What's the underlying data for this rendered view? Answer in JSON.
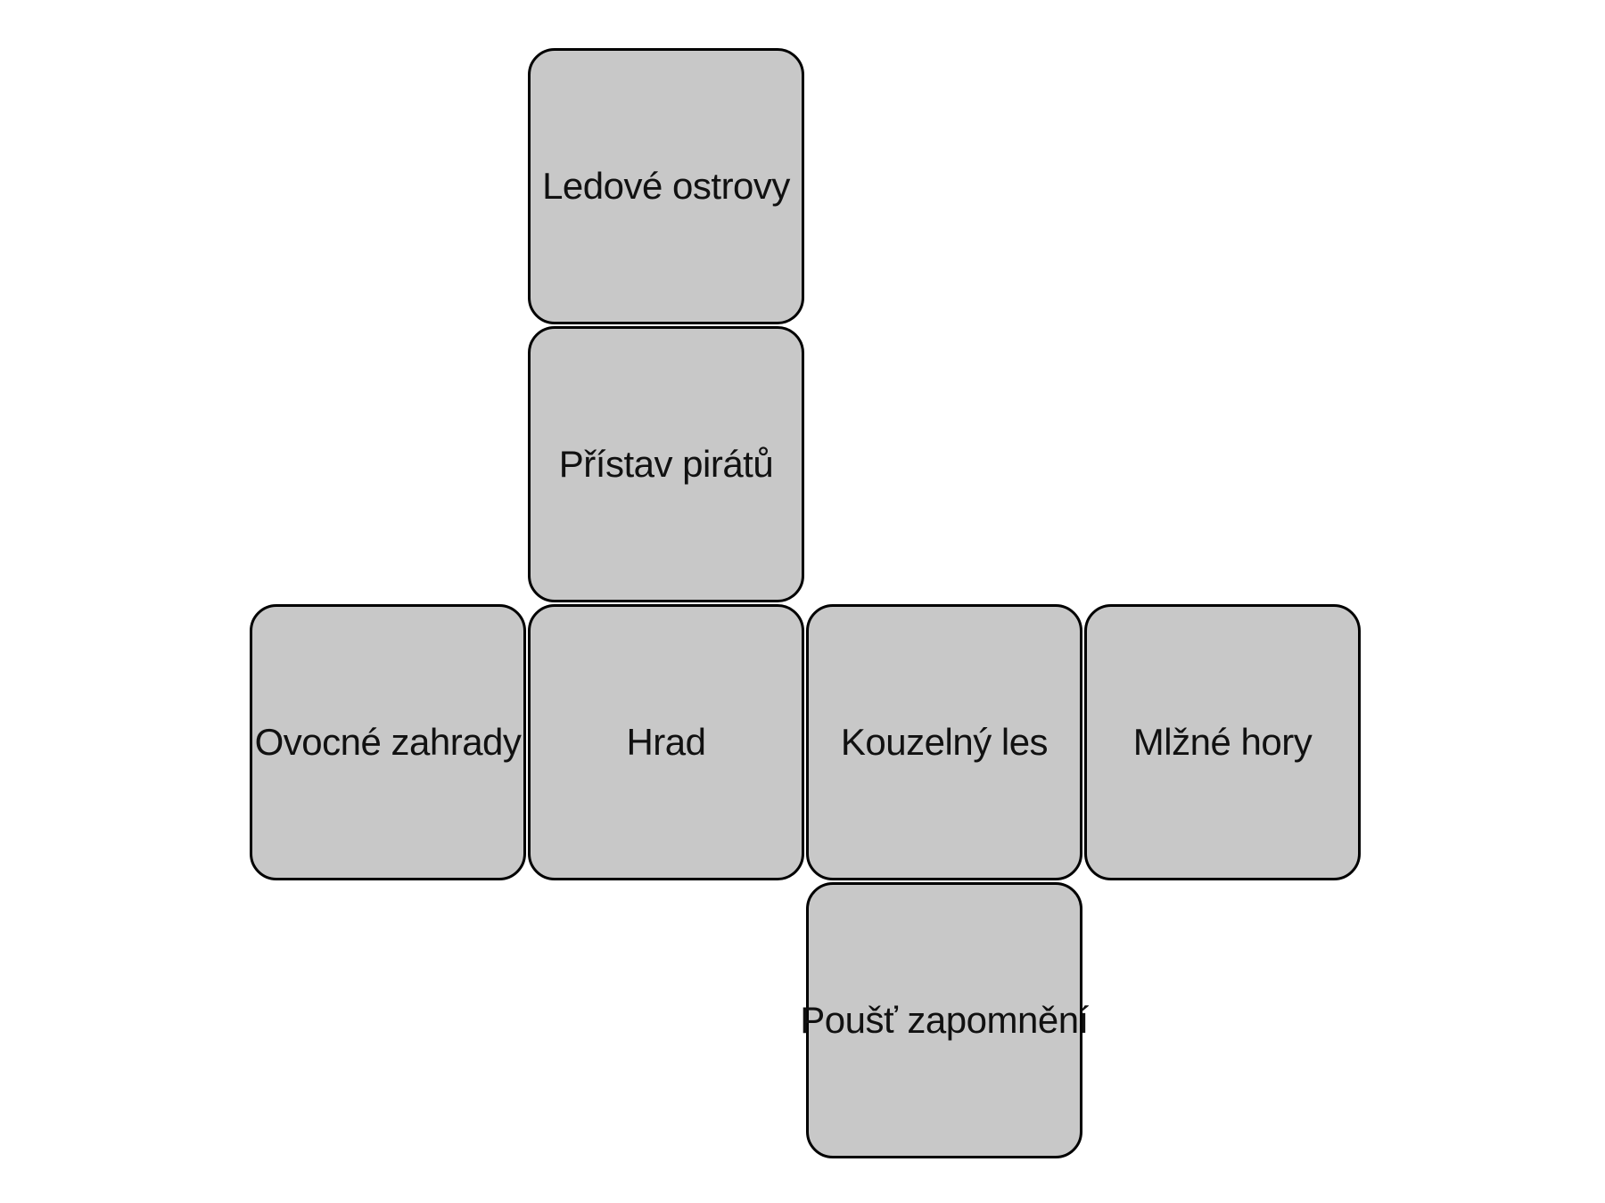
{
  "tiles": {
    "top": "Ledové ostrovy",
    "upper": "Přístav pirátů",
    "left": "Ovocné zahrady",
    "center": "Hrad",
    "right1": "Kouzelný les",
    "right2": "Mlžné hory",
    "bottom": "Poušť zapomnění"
  },
  "colors": {
    "tile_fill": "#c8c8c8",
    "tile_border": "#000000",
    "background": "#ffffff"
  }
}
